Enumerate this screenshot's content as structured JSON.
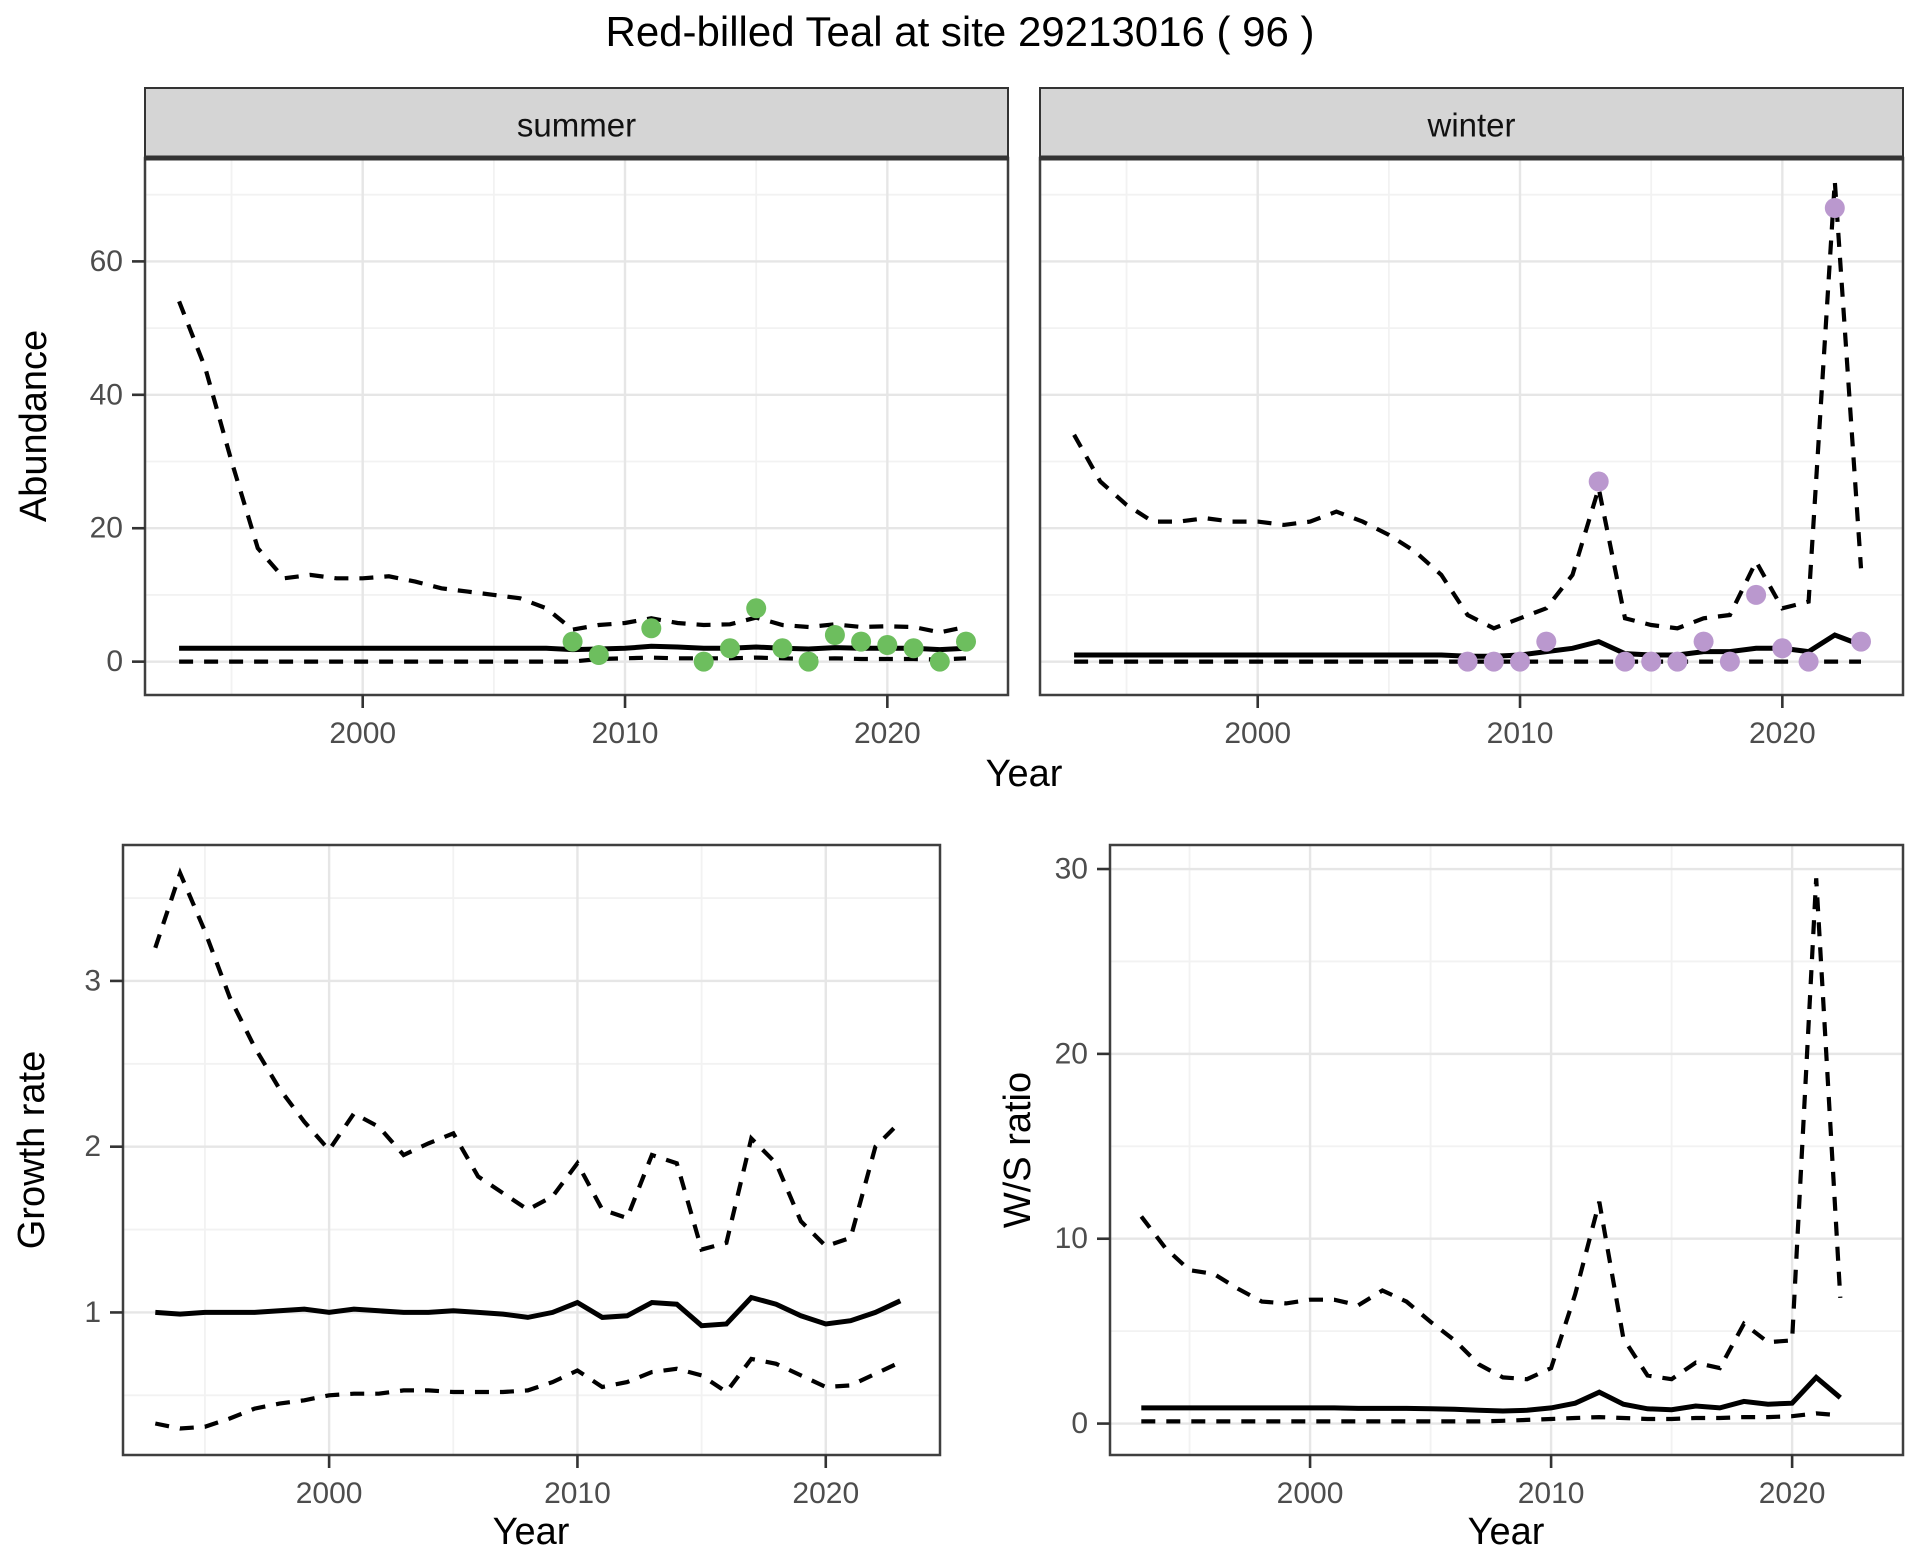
{
  "title": "Red-billed Teal at site 29213016 ( 96 )",
  "labels": {
    "year": "Year",
    "abundance": "Abundance",
    "growth": "Growth rate",
    "ws": "W/S ratio",
    "facet_summer": "summer",
    "facet_winter": "winter"
  },
  "colors": {
    "summer_point": "#6dbe5e",
    "winter_point": "#ba98ce",
    "line": "#000000",
    "grid_major": "#e6e6e6",
    "grid_minor": "#f2f2f2",
    "panel_border": "#3f3f3f",
    "strip_bg": "#d5d5d5",
    "strip_border": "#333333",
    "tick": "#333333",
    "tick_label": "#4d4d4d",
    "background": "#ffffff"
  },
  "chart_data": [
    {
      "id": "abundance-summer",
      "type": "line",
      "facet_label": "summer",
      "ylabel": "Abundance",
      "xlabel": "Year",
      "xlim": [
        1991.7,
        2024.6
      ],
      "ylim": [
        -5,
        75.5
      ],
      "xticks": [
        2000,
        2010,
        2020
      ],
      "xminor": [
        1995,
        2005,
        2015
      ],
      "yticks": [
        0,
        20,
        40,
        60
      ],
      "yminor": [
        10,
        30,
        50,
        70
      ],
      "x_years": [
        1993,
        1994,
        1995,
        1996,
        1997,
        1998,
        1999,
        2000,
        2001,
        2002,
        2003,
        2004,
        2005,
        2006,
        2007,
        2008,
        2009,
        2010,
        2011,
        2012,
        2013,
        2014,
        2015,
        2016,
        2017,
        2018,
        2019,
        2020,
        2021,
        2022,
        2023
      ],
      "upper": [
        54,
        44,
        30,
        17,
        12.5,
        13,
        12.5,
        12.5,
        12.8,
        12,
        11,
        10.5,
        10,
        9.5,
        8,
        4.8,
        5.5,
        5.8,
        6.5,
        5.8,
        5.5,
        5.6,
        6.6,
        5.5,
        5.2,
        5.6,
        5.2,
        5.3,
        5.2,
        4.4,
        5.2
      ],
      "median": [
        2,
        2,
        2,
        2,
        2,
        2,
        2,
        2,
        2,
        2,
        2,
        2,
        2,
        2,
        2,
        1.8,
        1.9,
        2,
        2.3,
        2.2,
        2,
        2,
        2.2,
        2,
        1.9,
        2.1,
        2,
        2,
        2,
        1.8,
        2
      ],
      "lower": [
        0,
        0,
        0,
        0,
        0,
        0,
        0,
        0,
        0,
        0,
        0,
        0,
        0,
        0,
        0,
        0,
        0.4,
        0.5,
        0.6,
        0.5,
        0.5,
        0.5,
        0.6,
        0.5,
        0.4,
        0.5,
        0.4,
        0.4,
        0.4,
        0.3,
        0.5
      ],
      "points": {
        "color_key": "summer_point",
        "years": [
          2008,
          2009,
          2011,
          2013,
          2014,
          2015,
          2016,
          2017,
          2018,
          2019,
          2020,
          2021,
          2022,
          2023
        ],
        "values": [
          3,
          1,
          5,
          0,
          2,
          8,
          2,
          0,
          4,
          3,
          2.5,
          2,
          0,
          3
        ]
      }
    },
    {
      "id": "abundance-winter",
      "type": "line",
      "facet_label": "winter",
      "ylabel": "Abundance",
      "xlabel": "Year",
      "xlim": [
        1991.7,
        2024.6
      ],
      "ylim": [
        -5,
        75.5
      ],
      "xticks": [
        2000,
        2010,
        2020
      ],
      "xminor": [
        1995,
        2005,
        2015
      ],
      "yticks": [
        0,
        20,
        40,
        60
      ],
      "yminor": [
        10,
        30,
        50,
        70
      ],
      "x_years": [
        1993,
        1994,
        1995,
        1996,
        1997,
        1998,
        1999,
        2000,
        2001,
        2002,
        2003,
        2004,
        2005,
        2006,
        2007,
        2008,
        2009,
        2010,
        2011,
        2012,
        2013,
        2014,
        2015,
        2016,
        2017,
        2018,
        2019,
        2020,
        2021,
        2022,
        2023
      ],
      "upper": [
        34,
        27,
        23.5,
        21,
        21,
        21.5,
        21,
        21,
        20.5,
        21,
        22.5,
        21,
        19,
        16.5,
        13,
        7,
        5,
        6.5,
        8,
        13,
        26,
        6.5,
        5.5,
        5,
        6.5,
        7,
        15,
        8,
        9,
        72,
        14
      ],
      "median": [
        1,
        1,
        1,
        1,
        1,
        1,
        1,
        1,
        1,
        1,
        1,
        1,
        1,
        1,
        1,
        0.8,
        0.8,
        1,
        1.5,
        2,
        3,
        1.2,
        1,
        1,
        1.5,
        1.5,
        2,
        2,
        1.5,
        4,
        2.5
      ],
      "lower": [
        0,
        0,
        0,
        0,
        0,
        0,
        0,
        0,
        0,
        0,
        0,
        0,
        0,
        0,
        0,
        0,
        0,
        0,
        0,
        0,
        0,
        0,
        0,
        0,
        0,
        0,
        0,
        0,
        0,
        0,
        0
      ],
      "points": {
        "color_key": "winter_point",
        "years": [
          2008,
          2009,
          2010,
          2011,
          2013,
          2014,
          2015,
          2016,
          2017,
          2018,
          2019,
          2020,
          2021,
          2022,
          2023
        ],
        "values": [
          0,
          0,
          0,
          3,
          27,
          0,
          0,
          0,
          3,
          0,
          10,
          2,
          0,
          68,
          3
        ]
      }
    },
    {
      "id": "growth-rate",
      "type": "line",
      "facet_label": null,
      "ylabel": "Growth rate",
      "xlabel": "Year",
      "xlim": [
        1991.7,
        2024.6
      ],
      "ylim": [
        0.14,
        3.82
      ],
      "xticks": [
        2000,
        2010,
        2020
      ],
      "xminor": [
        1995,
        2005,
        2015
      ],
      "yticks": [
        1,
        2,
        3
      ],
      "yminor": [
        0.5,
        1.5,
        2.5,
        3.5
      ],
      "x_years": [
        1993,
        1994,
        1995,
        1996,
        1997,
        1998,
        1999,
        2000,
        2001,
        2002,
        2003,
        2004,
        2005,
        2006,
        2007,
        2008,
        2009,
        2010,
        2011,
        2012,
        2013,
        2014,
        2015,
        2016,
        2017,
        2018,
        2019,
        2020,
        2021,
        2022,
        2023
      ],
      "upper": [
        3.2,
        3.65,
        3.3,
        2.9,
        2.6,
        2.35,
        2.15,
        1.98,
        2.2,
        2.12,
        1.95,
        2.02,
        2.08,
        1.82,
        1.72,
        1.62,
        1.7,
        1.9,
        1.62,
        1.57,
        1.95,
        1.9,
        1.38,
        1.42,
        2.05,
        1.9,
        1.55,
        1.4,
        1.45,
        2.0,
        2.15
      ],
      "median": [
        1.0,
        0.99,
        1.0,
        1.0,
        1.0,
        1.01,
        1.02,
        1.0,
        1.02,
        1.01,
        1.0,
        1.0,
        1.01,
        1.0,
        0.99,
        0.97,
        1.0,
        1.06,
        0.97,
        0.98,
        1.06,
        1.05,
        0.92,
        0.93,
        1.09,
        1.05,
        0.98,
        0.93,
        0.95,
        1.0,
        1.07
      ],
      "lower": [
        0.33,
        0.3,
        0.31,
        0.36,
        0.42,
        0.45,
        0.47,
        0.5,
        0.51,
        0.51,
        0.53,
        0.53,
        0.52,
        0.52,
        0.52,
        0.53,
        0.58,
        0.65,
        0.55,
        0.58,
        0.64,
        0.66,
        0.62,
        0.52,
        0.72,
        0.69,
        0.62,
        0.55,
        0.56,
        0.63,
        0.7
      ],
      "points": null
    },
    {
      "id": "ws-ratio",
      "type": "line",
      "facet_label": null,
      "ylabel": "W/S ratio",
      "xlabel": "Year",
      "xlim": [
        1991.7,
        2024.6
      ],
      "ylim": [
        -1.7,
        31.3
      ],
      "xticks": [
        2000,
        2010,
        2020
      ],
      "xminor": [
        1995,
        2005,
        2015
      ],
      "yticks": [
        0,
        10,
        20,
        30
      ],
      "yminor": [
        5,
        15,
        25
      ],
      "x_years": [
        1993,
        1994,
        1995,
        1996,
        1997,
        1998,
        1999,
        2000,
        2001,
        2002,
        2003,
        2004,
        2005,
        2006,
        2007,
        2008,
        2009,
        2010,
        2011,
        2012,
        2013,
        2014,
        2015,
        2016,
        2017,
        2018,
        2019,
        2020,
        2021,
        2022
      ],
      "upper": [
        11.2,
        9.5,
        8.3,
        8.1,
        7.3,
        6.6,
        6.5,
        6.7,
        6.7,
        6.4,
        7.2,
        6.6,
        5.5,
        4.5,
        3.2,
        2.5,
        2.4,
        3.0,
        7.0,
        12.0,
        4.6,
        2.6,
        2.4,
        3.3,
        3.0,
        5.4,
        4.4,
        4.5,
        29.5,
        6.8
      ],
      "median": [
        0.85,
        0.85,
        0.85,
        0.85,
        0.85,
        0.85,
        0.85,
        0.85,
        0.85,
        0.82,
        0.82,
        0.82,
        0.8,
        0.78,
        0.72,
        0.68,
        0.72,
        0.85,
        1.1,
        1.7,
        1.05,
        0.8,
        0.75,
        0.95,
        0.85,
        1.2,
        1.05,
        1.1,
        2.5,
        1.4
      ],
      "lower": [
        0.12,
        0.12,
        0.12,
        0.12,
        0.12,
        0.12,
        0.12,
        0.12,
        0.12,
        0.12,
        0.12,
        0.12,
        0.12,
        0.12,
        0.12,
        0.15,
        0.2,
        0.25,
        0.3,
        0.35,
        0.3,
        0.25,
        0.25,
        0.3,
        0.3,
        0.35,
        0.35,
        0.4,
        0.55,
        0.45
      ],
      "points": null
    }
  ]
}
